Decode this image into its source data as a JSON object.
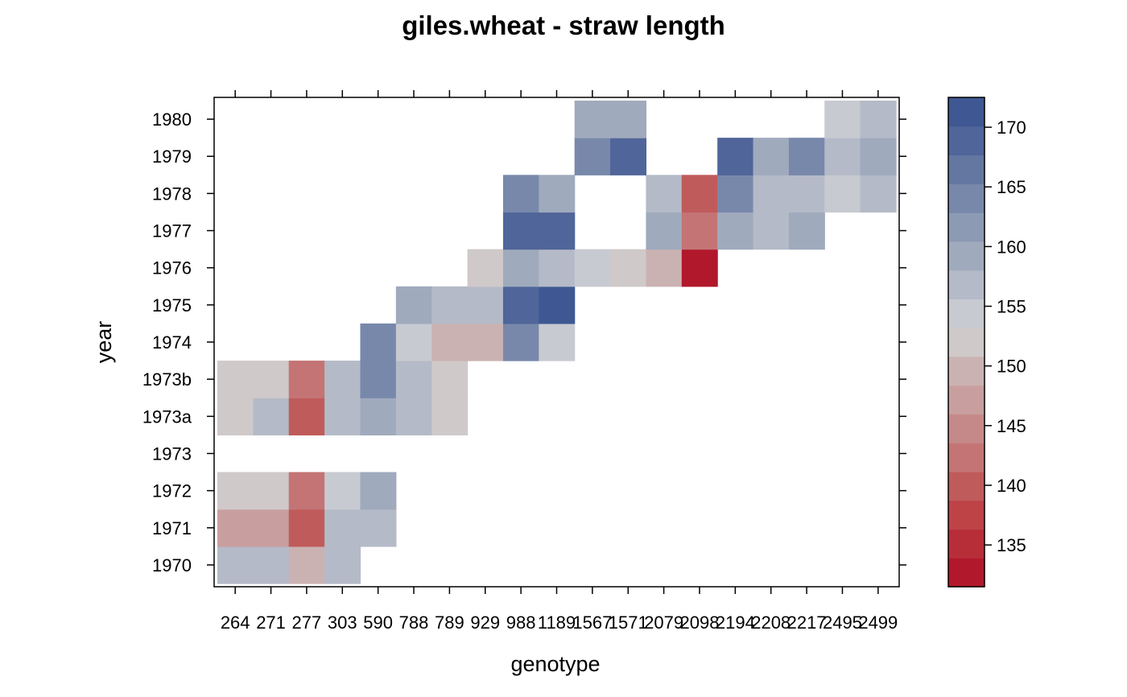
{
  "chart_data": {
    "type": "heatmap",
    "title": "giles.wheat - straw length",
    "xlabel": "genotype",
    "ylabel": "year",
    "x_categories": [
      "264",
      "271",
      "277",
      "303",
      "590",
      "788",
      "789",
      "929",
      "988",
      "1189",
      "1567",
      "1571",
      "2079",
      "2098",
      "2194",
      "2208",
      "2217",
      "2495",
      "2499"
    ],
    "y_categories": [
      "1970",
      "1971",
      "1972",
      "1973",
      "1973a",
      "1973b",
      "1974",
      "1975",
      "1976",
      "1977",
      "1978",
      "1979",
      "1980"
    ],
    "cells": [
      {
        "x": "264",
        "y": "1970",
        "value": 156
      },
      {
        "x": "271",
        "y": "1970",
        "value": 156
      },
      {
        "x": "277",
        "y": "1970",
        "value": 149
      },
      {
        "x": "303",
        "y": "1970",
        "value": 158
      },
      {
        "x": "264",
        "y": "1971",
        "value": 146
      },
      {
        "x": "271",
        "y": "1971",
        "value": 146
      },
      {
        "x": "277",
        "y": "1971",
        "value": 139
      },
      {
        "x": "303",
        "y": "1971",
        "value": 156
      },
      {
        "x": "590",
        "y": "1971",
        "value": 156
      },
      {
        "x": "264",
        "y": "1972",
        "value": 151
      },
      {
        "x": "271",
        "y": "1972",
        "value": 151
      },
      {
        "x": "277",
        "y": "1972",
        "value": 143
      },
      {
        "x": "303",
        "y": "1972",
        "value": 154
      },
      {
        "x": "590",
        "y": "1972",
        "value": 160
      },
      {
        "x": "264",
        "y": "1973a",
        "value": 151
      },
      {
        "x": "271",
        "y": "1973a",
        "value": 156
      },
      {
        "x": "277",
        "y": "1973a",
        "value": 140
      },
      {
        "x": "303",
        "y": "1973a",
        "value": 156
      },
      {
        "x": "590",
        "y": "1973a",
        "value": 160
      },
      {
        "x": "788",
        "y": "1973a",
        "value": 156
      },
      {
        "x": "789",
        "y": "1973a",
        "value": 151
      },
      {
        "x": "264",
        "y": "1973b",
        "value": 151
      },
      {
        "x": "271",
        "y": "1973b",
        "value": 151
      },
      {
        "x": "277",
        "y": "1973b",
        "value": 143
      },
      {
        "x": "303",
        "y": "1973b",
        "value": 158
      },
      {
        "x": "590",
        "y": "1973b",
        "value": 163
      },
      {
        "x": "788",
        "y": "1973b",
        "value": 156
      },
      {
        "x": "789",
        "y": "1973b",
        "value": 151
      },
      {
        "x": "590",
        "y": "1974",
        "value": 163
      },
      {
        "x": "788",
        "y": "1974",
        "value": 154
      },
      {
        "x": "789",
        "y": "1974",
        "value": 149
      },
      {
        "x": "929",
        "y": "1974",
        "value": 149
      },
      {
        "x": "988",
        "y": "1974",
        "value": 165
      },
      {
        "x": "1189",
        "y": "1974",
        "value": 154
      },
      {
        "x": "788",
        "y": "1975",
        "value": 160
      },
      {
        "x": "789",
        "y": "1975",
        "value": 156
      },
      {
        "x": "929",
        "y": "1975",
        "value": 156
      },
      {
        "x": "988",
        "y": "1975",
        "value": 168
      },
      {
        "x": "1189",
        "y": "1975",
        "value": 171
      },
      {
        "x": "929",
        "y": "1976",
        "value": 151
      },
      {
        "x": "988",
        "y": "1976",
        "value": 160
      },
      {
        "x": "1189",
        "y": "1976",
        "value": 158
      },
      {
        "x": "1567",
        "y": "1976",
        "value": 154
      },
      {
        "x": "1571",
        "y": "1976",
        "value": 151
      },
      {
        "x": "2079",
        "y": "1976",
        "value": 149
      },
      {
        "x": "2098",
        "y": "1976",
        "value": 133
      },
      {
        "x": "988",
        "y": "1977",
        "value": 168
      },
      {
        "x": "1189",
        "y": "1977",
        "value": 168
      },
      {
        "x": "2079",
        "y": "1977",
        "value": 160
      },
      {
        "x": "2098",
        "y": "1977",
        "value": 143
      },
      {
        "x": "2194",
        "y": "1977",
        "value": 160
      },
      {
        "x": "2208",
        "y": "1977",
        "value": 156
      },
      {
        "x": "2217",
        "y": "1977",
        "value": 160
      },
      {
        "x": "988",
        "y": "1978",
        "value": 165
      },
      {
        "x": "1189",
        "y": "1978",
        "value": 160
      },
      {
        "x": "2079",
        "y": "1978",
        "value": 158
      },
      {
        "x": "2098",
        "y": "1978",
        "value": 139
      },
      {
        "x": "2194",
        "y": "1978",
        "value": 165
      },
      {
        "x": "2208",
        "y": "1978",
        "value": 158
      },
      {
        "x": "2217",
        "y": "1978",
        "value": 158
      },
      {
        "x": "2495",
        "y": "1978",
        "value": 154
      },
      {
        "x": "2499",
        "y": "1978",
        "value": 156
      },
      {
        "x": "1567",
        "y": "1979",
        "value": 165
      },
      {
        "x": "1571",
        "y": "1979",
        "value": 168
      },
      {
        "x": "2194",
        "y": "1979",
        "value": 168
      },
      {
        "x": "2208",
        "y": "1979",
        "value": 160
      },
      {
        "x": "2217",
        "y": "1979",
        "value": 163
      },
      {
        "x": "2495",
        "y": "1979",
        "value": 158
      },
      {
        "x": "2499",
        "y": "1979",
        "value": 160
      },
      {
        "x": "1567",
        "y": "1980",
        "value": 160
      },
      {
        "x": "1571",
        "y": "1980",
        "value": 160
      },
      {
        "x": "2495",
        "y": "1980",
        "value": 154
      },
      {
        "x": "2499",
        "y": "1980",
        "value": 156
      }
    ],
    "colorbar": {
      "range": [
        131.5,
        172.5
      ],
      "ticks": [
        135,
        140,
        145,
        150,
        155,
        160,
        165,
        170
      ],
      "colors": [
        "#b2182b",
        "#b82e38",
        "#bd4347",
        "#c05b5b",
        "#c47474",
        "#c68989",
        "#c99e9e",
        "#cbb2b2",
        "#d0c9c9",
        "#c8cad1",
        "#b4bac7",
        "#a0aabd",
        "#8c9ab4",
        "#7888ab",
        "#6477a1",
        "#506599",
        "#3f5893"
      ]
    },
    "grid": false,
    "legend": "colorbar-right"
  }
}
